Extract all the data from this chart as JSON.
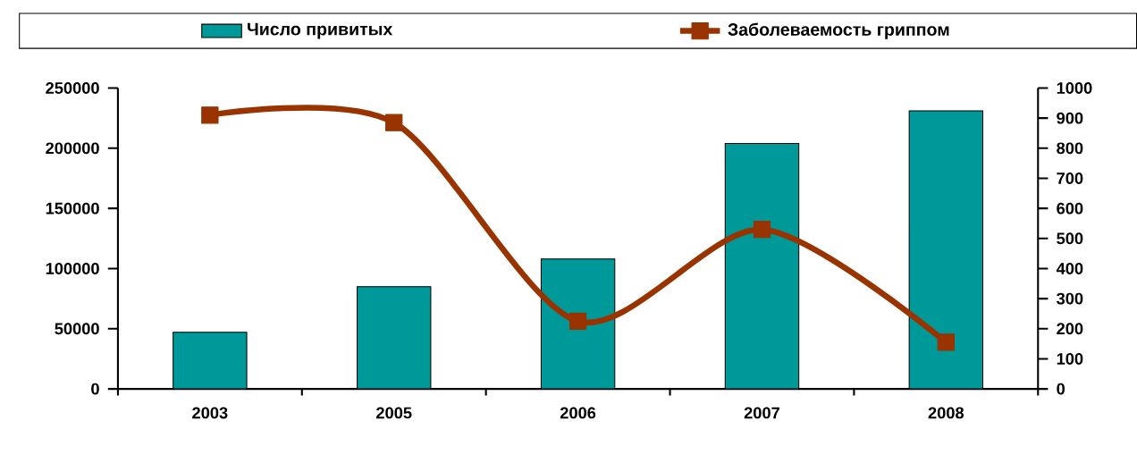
{
  "chart_data": {
    "type": "bar",
    "categories": [
      "2003",
      "2005",
      "2006",
      "2007",
      "2008"
    ],
    "series": [
      {
        "name": "Число привитых",
        "color": "#009999",
        "values": [
          47000,
          85000,
          108000,
          204000,
          231000
        ]
      },
      {
        "name": "Заболеваемость гриппом",
        "color": "#993300",
        "type": "line",
        "axis": "y2",
        "values": [
          910,
          885,
          225,
          530,
          155
        ]
      }
    ],
    "ylim": [
      0,
      250000
    ],
    "yticks": [
      0,
      50000,
      100000,
      150000,
      200000,
      250000
    ],
    "y2lim": [
      0,
      1000
    ],
    "y2ticks": [
      0,
      100,
      200,
      300,
      400,
      500,
      600,
      700,
      800,
      900,
      1000
    ],
    "marker": "square",
    "legend": "top"
  }
}
